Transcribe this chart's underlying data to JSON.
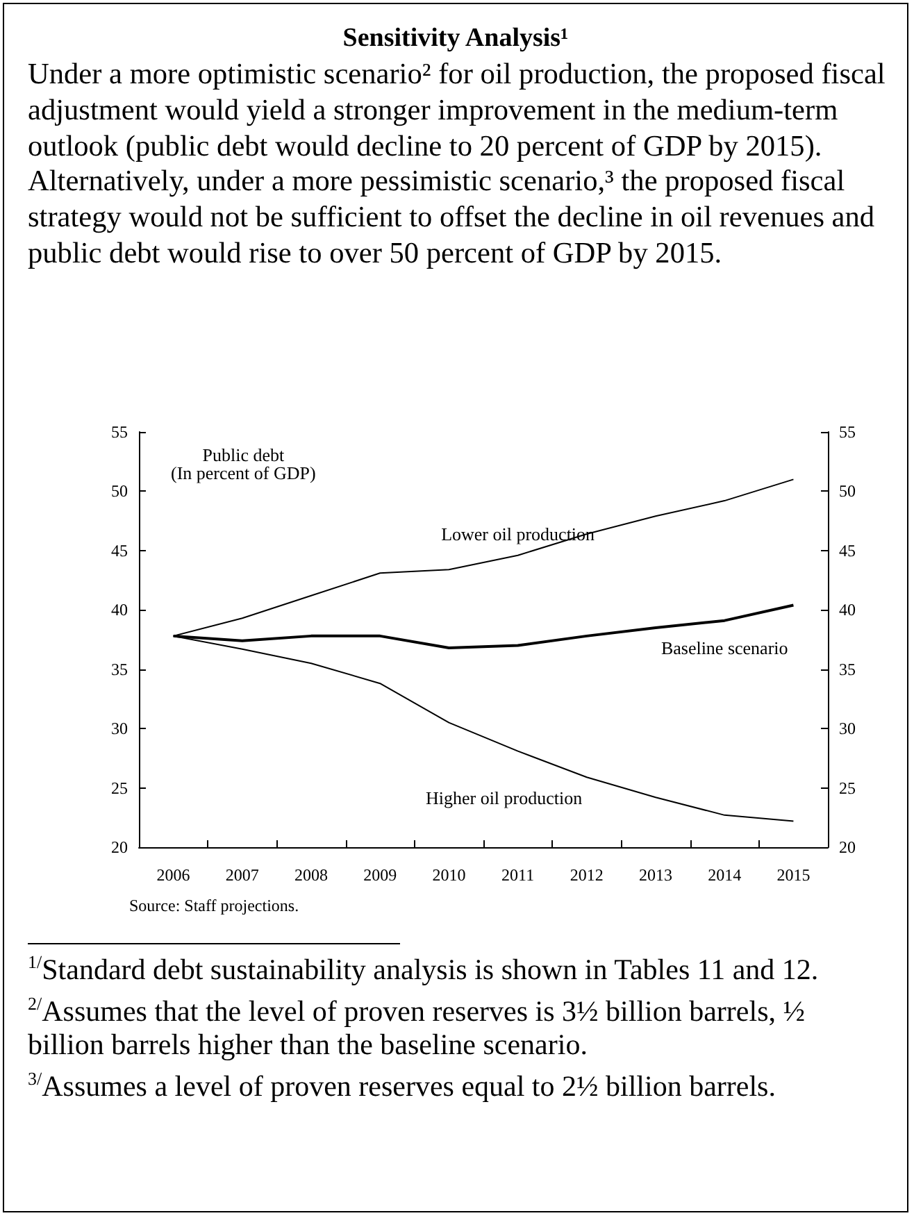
{
  "chart_data": {
    "type": "line",
    "title": "Sensitivity Analysis¹",
    "subtitle": "Under a more optimistic scenario² for oil production, the proposed fiscal adjustment would yield a stronger improvement in the medium-term outlook (public debt would decline to 20 percent of GDP by 2015). Alternatively, under a more pessimistic scenario,³ the proposed fiscal strategy would not be sufficient to offset the decline in oil revenues and public debt would rise to over 50 percent of GDP by 2015.",
    "ylabel": "Public debt\n(In percent of GDP)",
    "categories": [
      "2006",
      "2007",
      "2008",
      "2009",
      "2010",
      "2011",
      "2012",
      "2013",
      "2014",
      "2015"
    ],
    "series": [
      {
        "name": "Lower oil production",
        "color": "#000000",
        "values": [
          37.8,
          39.3,
          41.2,
          43.1,
          43.4,
          44.6,
          46.4,
          47.9,
          49.2,
          51.0
        ]
      },
      {
        "name": "Baseline scenario",
        "color": "#000000",
        "values": [
          37.8,
          37.4,
          37.8,
          37.8,
          36.8,
          37.0,
          37.8,
          38.5,
          39.1,
          40.4
        ]
      },
      {
        "name": "Higher oil production",
        "color": "#000000",
        "values": [
          37.8,
          36.7,
          35.5,
          33.8,
          30.5,
          28.1,
          25.9,
          24.2,
          22.7,
          22.2
        ]
      }
    ],
    "ylim": [
      20,
      55
    ],
    "yticks": [
      20,
      25,
      30,
      35,
      40,
      45,
      50,
      55
    ],
    "y2lim": [
      20,
      55
    ],
    "y2ticks": [
      20,
      25,
      30,
      35,
      40,
      45,
      50,
      55
    ],
    "grid": false,
    "legend": false,
    "marker": "none",
    "line_style": "solid",
    "annotations": [
      "Source: Staff projections.",
      "$^{1/}$Standard debt sustainability analysis is shown in Tables 11 and 12.",
      "$^{2/}$Assumes that the level of proven reserves is 3½ billion barrels, ½ billion barrels higher than the baseline scenario.",
      "$^{3/}$Assumes a level of proven reserves equal to 2½ billion barrels."
    ]
  }
}
